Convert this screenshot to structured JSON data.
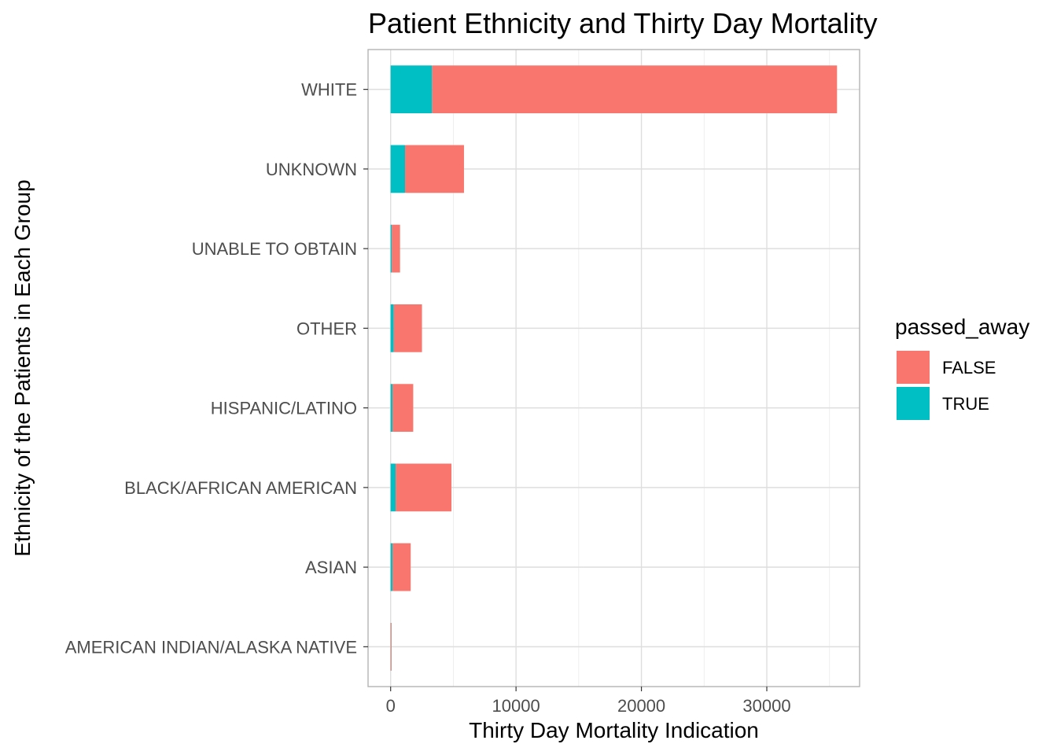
{
  "chart_data": {
    "type": "bar",
    "orientation": "horizontal",
    "stacked": true,
    "title": "Patient Ethnicity and Thirty Day Mortality",
    "xlabel": "Thirty Day Mortality Indication",
    "ylabel": "Ethnicity of the Patients in Each Group",
    "xlim": [
      -1800,
      37400
    ],
    "xticks": [
      0,
      10000,
      20000,
      30000
    ],
    "xtick_labels": [
      "0",
      "10000",
      "20000",
      "30000"
    ],
    "grid": true,
    "legend_position": "right",
    "legend_title": "passed_away",
    "categories": [
      "AMERICAN INDIAN/ALASKA NATIVE",
      "ASIAN",
      "BLACK/AFRICAN AMERICAN",
      "HISPANIC/LATINO",
      "OTHER",
      "UNABLE TO OBTAIN",
      "UNKNOWN",
      "WHITE"
    ],
    "series": [
      {
        "name": "TRUE",
        "color": "#00BFC4",
        "values": [
          10,
          150,
          400,
          150,
          250,
          100,
          1150,
          3300
        ]
      },
      {
        "name": "FALSE",
        "color": "#F8766D",
        "values": [
          40,
          1450,
          4450,
          1650,
          2250,
          650,
          4700,
          32300
        ]
      }
    ],
    "legend_order": [
      "FALSE",
      "TRUE"
    ]
  }
}
